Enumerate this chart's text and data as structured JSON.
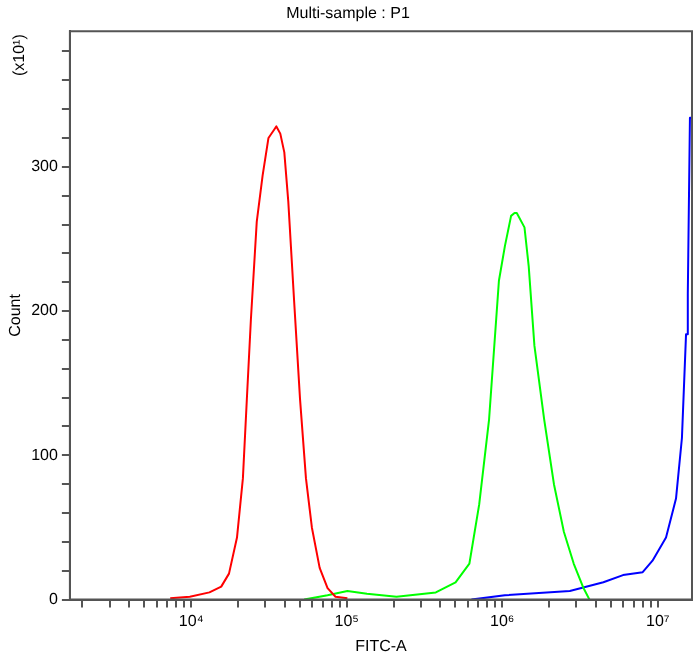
{
  "chart_data": {
    "type": "line",
    "title": "Multi-sample : P1",
    "xlabel": "FITC-A",
    "ylabel": "Count",
    "annotations": [
      "(x10¹)"
    ],
    "log": "x",
    "grid": false,
    "legend": false,
    "marker": "none",
    "line_style": "solid",
    "xlim": [
      1660,
      16600000
    ],
    "xticks": [
      {
        "value": 2000,
        "label": null
      },
      {
        "value": 3000,
        "label": null
      },
      {
        "value": 4000,
        "label": null
      },
      {
        "value": 5000,
        "label": null
      },
      {
        "value": 6000,
        "label": null
      },
      {
        "value": 7000,
        "label": null
      },
      {
        "value": 8000,
        "label": null
      },
      {
        "value": 9000,
        "label": null
      },
      {
        "value": 10000,
        "label": "10⁴"
      },
      {
        "value": 20000,
        "label": null
      },
      {
        "value": 30000,
        "label": null
      },
      {
        "value": 40000,
        "label": null
      },
      {
        "value": 50000,
        "label": null
      },
      {
        "value": 60000,
        "label": null
      },
      {
        "value": 70000,
        "label": null
      },
      {
        "value": 80000,
        "label": null
      },
      {
        "value": 90000,
        "label": null
      },
      {
        "value": 100000,
        "label": "10⁵"
      },
      {
        "value": 200000,
        "label": null
      },
      {
        "value": 300000,
        "label": null
      },
      {
        "value": 400000,
        "label": null
      },
      {
        "value": 500000,
        "label": null
      },
      {
        "value": 600000,
        "label": null
      },
      {
        "value": 700000,
        "label": null
      },
      {
        "value": 800000,
        "label": null
      },
      {
        "value": 900000,
        "label": null
      },
      {
        "value": 1000000,
        "label": "10⁶"
      },
      {
        "value": 2000000,
        "label": null
      },
      {
        "value": 3000000,
        "label": null
      },
      {
        "value": 4000000,
        "label": null
      },
      {
        "value": 5000000,
        "label": null
      },
      {
        "value": 6000000,
        "label": null
      },
      {
        "value": 7000000,
        "label": null
      },
      {
        "value": 8000000,
        "label": null
      },
      {
        "value": 9000000,
        "label": null
      },
      {
        "value": 10000000,
        "label": "10⁷"
      }
    ],
    "ylim": [
      0,
      394
    ],
    "yticks": [
      0,
      {
        "value": 20,
        "label": null
      },
      {
        "value": 40,
        "label": null
      },
      {
        "value": 60,
        "label": null
      },
      {
        "value": 80,
        "label": null
      },
      100,
      {
        "value": 120,
        "label": null
      },
      {
        "value": 140,
        "label": null
      },
      {
        "value": 160,
        "label": null
      },
      {
        "value": 180,
        "label": null
      },
      200,
      {
        "value": 220,
        "label": null
      },
      {
        "value": 240,
        "label": null
      },
      {
        "value": 260,
        "label": null
      },
      {
        "value": 280,
        "label": null
      },
      300,
      {
        "value": 320,
        "label": null
      },
      {
        "value": 340,
        "label": null
      },
      {
        "value": 360,
        "label": null
      },
      {
        "value": 380,
        "label": null
      }
    ],
    "series": [
      {
        "color": "#ff0000",
        "x": [
          7330,
          9800,
          13100,
          15600,
          17500,
          19700,
          21500,
          22800,
          24200,
          26400,
          28800,
          31400,
          34300,
          35300,
          37400,
          39700,
          42100,
          45900,
          50100,
          54700,
          59700,
          67000,
          75300,
          84700,
          101000
        ],
        "values": [
          1,
          2,
          5,
          9,
          18,
          43,
          84,
          139,
          194,
          262,
          294,
          320,
          326,
          328,
          323,
          310,
          276,
          207,
          139,
          84,
          50,
          22,
          8,
          2,
          1
        ]
      },
      {
        "color": "#00ff00",
        "x": [
          53300,
          75300,
          101000,
          135000,
          209000,
          374000,
          501000,
          615000,
          711000,
          823000,
          952000,
          1040000,
          1140000,
          1200000,
          1240000,
          1390000,
          1480000,
          1610000,
          1860000,
          2150000,
          2490000,
          2880000,
          3330000,
          3640000
        ],
        "values": [
          0,
          3,
          6,
          4,
          2,
          5,
          12,
          25,
          66,
          125,
          221,
          245,
          266,
          268,
          268,
          258,
          231,
          176,
          125,
          80,
          47,
          25,
          8,
          0
        ]
      },
      {
        "color": "#0000ff",
        "x": [
          634000,
          1040000,
          2720000,
          4470000,
          5980000,
          8000000,
          9250000,
          11300000,
          13100000,
          14300000,
          15200000,
          15600000,
          16100000,
          16600000
        ],
        "values": [
          0,
          3,
          6,
          12,
          17,
          19,
          27,
          43,
          70,
          112,
          184,
          212,
          334,
          334
        ]
      }
    ]
  }
}
